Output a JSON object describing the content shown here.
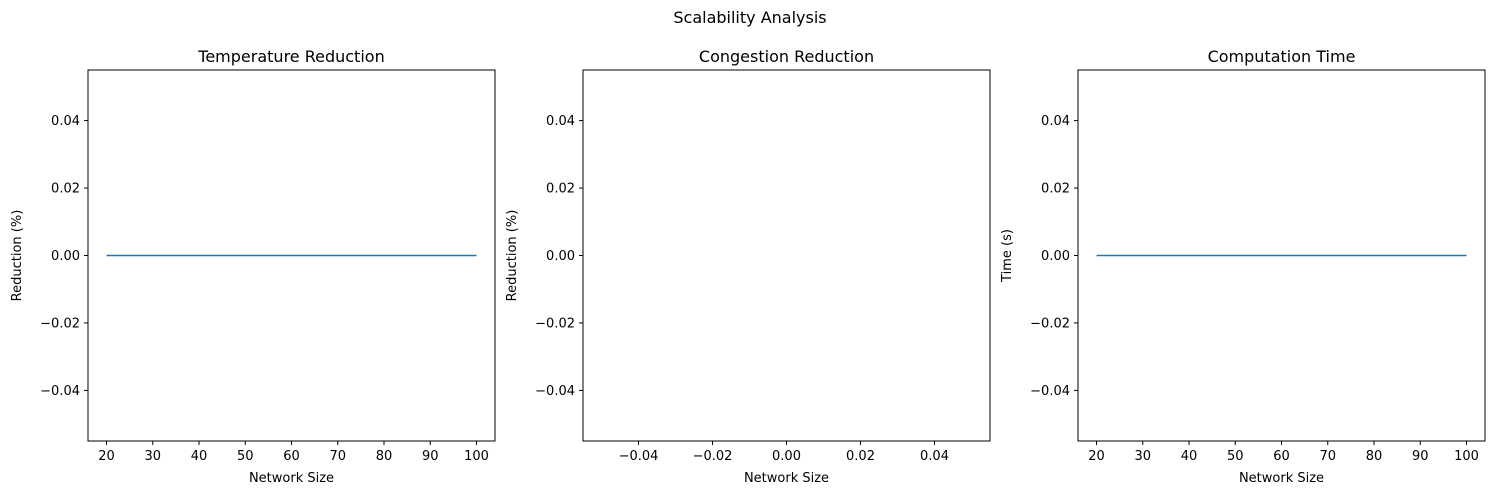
{
  "figure": {
    "suptitle": "Scalability Analysis",
    "line_color": "#1f77b4"
  },
  "chart_data": [
    {
      "type": "line",
      "title": "Temperature Reduction",
      "xlabel": "Network Size",
      "ylabel": "Reduction (%)",
      "x": [
        20,
        30,
        40,
        50,
        60,
        70,
        80,
        90,
        100
      ],
      "y": [
        0,
        0,
        0,
        0,
        0,
        0,
        0,
        0,
        0
      ],
      "xlim": [
        16,
        104
      ],
      "ylim": [
        -0.055,
        0.055
      ],
      "xticks": [
        20,
        30,
        40,
        50,
        60,
        70,
        80,
        90,
        100
      ],
      "xticklabels": [
        "20",
        "30",
        "40",
        "50",
        "60",
        "70",
        "80",
        "90",
        "100"
      ],
      "yticks": [
        -0.04,
        -0.02,
        0,
        0.02,
        0.04
      ],
      "yticklabels": [
        "−0.04",
        "−0.02",
        "0.00",
        "0.02",
        "0.04"
      ],
      "grid": false
    },
    {
      "type": "line",
      "title": "Congestion Reduction",
      "xlabel": "Network Size",
      "ylabel": "Reduction (%)",
      "x": [],
      "y": [],
      "xlim": [
        -0.055,
        0.055
      ],
      "ylim": [
        -0.055,
        0.055
      ],
      "xticks": [
        -0.04,
        -0.02,
        0,
        0.02,
        0.04
      ],
      "xticklabels": [
        "−0.04",
        "−0.02",
        "0.00",
        "0.02",
        "0.04"
      ],
      "yticks": [
        -0.04,
        -0.02,
        0,
        0.02,
        0.04
      ],
      "yticklabels": [
        "−0.04",
        "−0.02",
        "0.00",
        "0.02",
        "0.04"
      ],
      "grid": false
    },
    {
      "type": "line",
      "title": "Computation Time",
      "xlabel": "Network Size",
      "ylabel": "Time (s)",
      "x": [
        20,
        30,
        40,
        50,
        60,
        70,
        80,
        90,
        100
      ],
      "y": [
        0,
        0,
        0,
        0,
        0,
        0,
        0,
        0,
        0
      ],
      "xlim": [
        16,
        104
      ],
      "ylim": [
        -0.055,
        0.055
      ],
      "xticks": [
        20,
        30,
        40,
        50,
        60,
        70,
        80,
        90,
        100
      ],
      "xticklabels": [
        "20",
        "30",
        "40",
        "50",
        "60",
        "70",
        "80",
        "90",
        "100"
      ],
      "yticks": [
        -0.04,
        -0.02,
        0,
        0.02,
        0.04
      ],
      "yticklabels": [
        "−0.04",
        "−0.02",
        "0.00",
        "0.02",
        "0.04"
      ],
      "grid": false
    }
  ]
}
